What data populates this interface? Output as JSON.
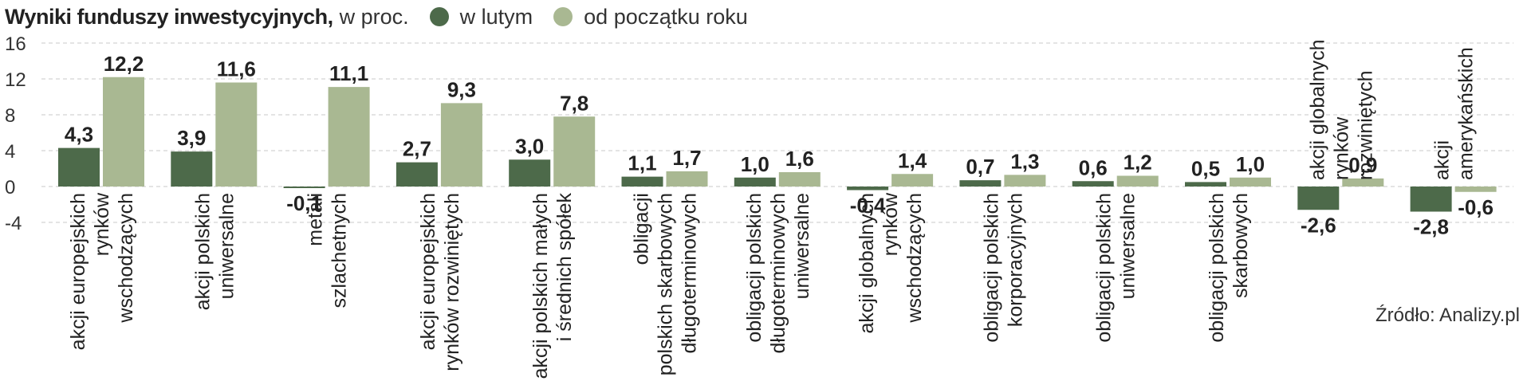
{
  "header": {
    "title": "Wyniki funduszy inwestycyjnych,",
    "subtitle": "w proc."
  },
  "source": "Źródło: Analizy.pl",
  "colors": {
    "dark": "#4d6a4a",
    "light": "#a9b892"
  },
  "chart_data": {
    "type": "bar",
    "ylim": [
      -4,
      16
    ],
    "yticks": [
      "16",
      "12",
      "8",
      "4",
      "0",
      "-4"
    ],
    "legend": "top",
    "grid": true,
    "categories": [
      [
        "akcji europejskich",
        "rynków",
        "wschodzących"
      ],
      [
        "akcji polskich",
        "uniwersalne"
      ],
      [
        "metali",
        "szlachetnych"
      ],
      [
        "akcji europejskich",
        "rynków rozwiniętych"
      ],
      [
        "akcji polskich małych",
        "i średnich spółek"
      ],
      [
        "obligacji",
        "polskich skarbowych",
        "długoterminowych"
      ],
      [
        "obligacji polskich",
        "długoterminowych",
        "uniwersalne"
      ],
      [
        "akcji globalnych",
        "rynków",
        "wschodzących"
      ],
      [
        "obligacji polskich",
        "korporacyjnych"
      ],
      [
        "obligacji polskich",
        "uniwersalne"
      ],
      [
        "obligacji polskich",
        "skarbowych"
      ],
      [
        "akcji globalnych",
        "rynków",
        "rozwiniętych"
      ],
      [
        "akcji",
        "amerykańskich"
      ]
    ],
    "series": [
      {
        "name": "w lutym",
        "values": [
          4.3,
          3.9,
          -0.1,
          2.7,
          3.0,
          1.1,
          1.0,
          -0.4,
          0.7,
          0.6,
          0.5,
          -2.6,
          -2.8
        ],
        "labels": [
          "4,3",
          "3,9",
          "-0,1",
          "2,7",
          "3,0",
          "1,1",
          "1,0",
          "-0,4",
          "0,7",
          "0,6",
          "0,5",
          "-2,6",
          "-2,8"
        ]
      },
      {
        "name": "od początku roku",
        "values": [
          12.2,
          11.6,
          11.1,
          9.3,
          7.8,
          1.7,
          1.6,
          1.4,
          1.3,
          1.2,
          1.0,
          0.9,
          -0.6
        ],
        "labels": [
          "12,2",
          "11,6",
          "11,1",
          "9,3",
          "7,8",
          "1,7",
          "1,6",
          "1,4",
          "1,3",
          "1,2",
          "1,0",
          "0,9",
          "-0,6"
        ]
      }
    ]
  }
}
